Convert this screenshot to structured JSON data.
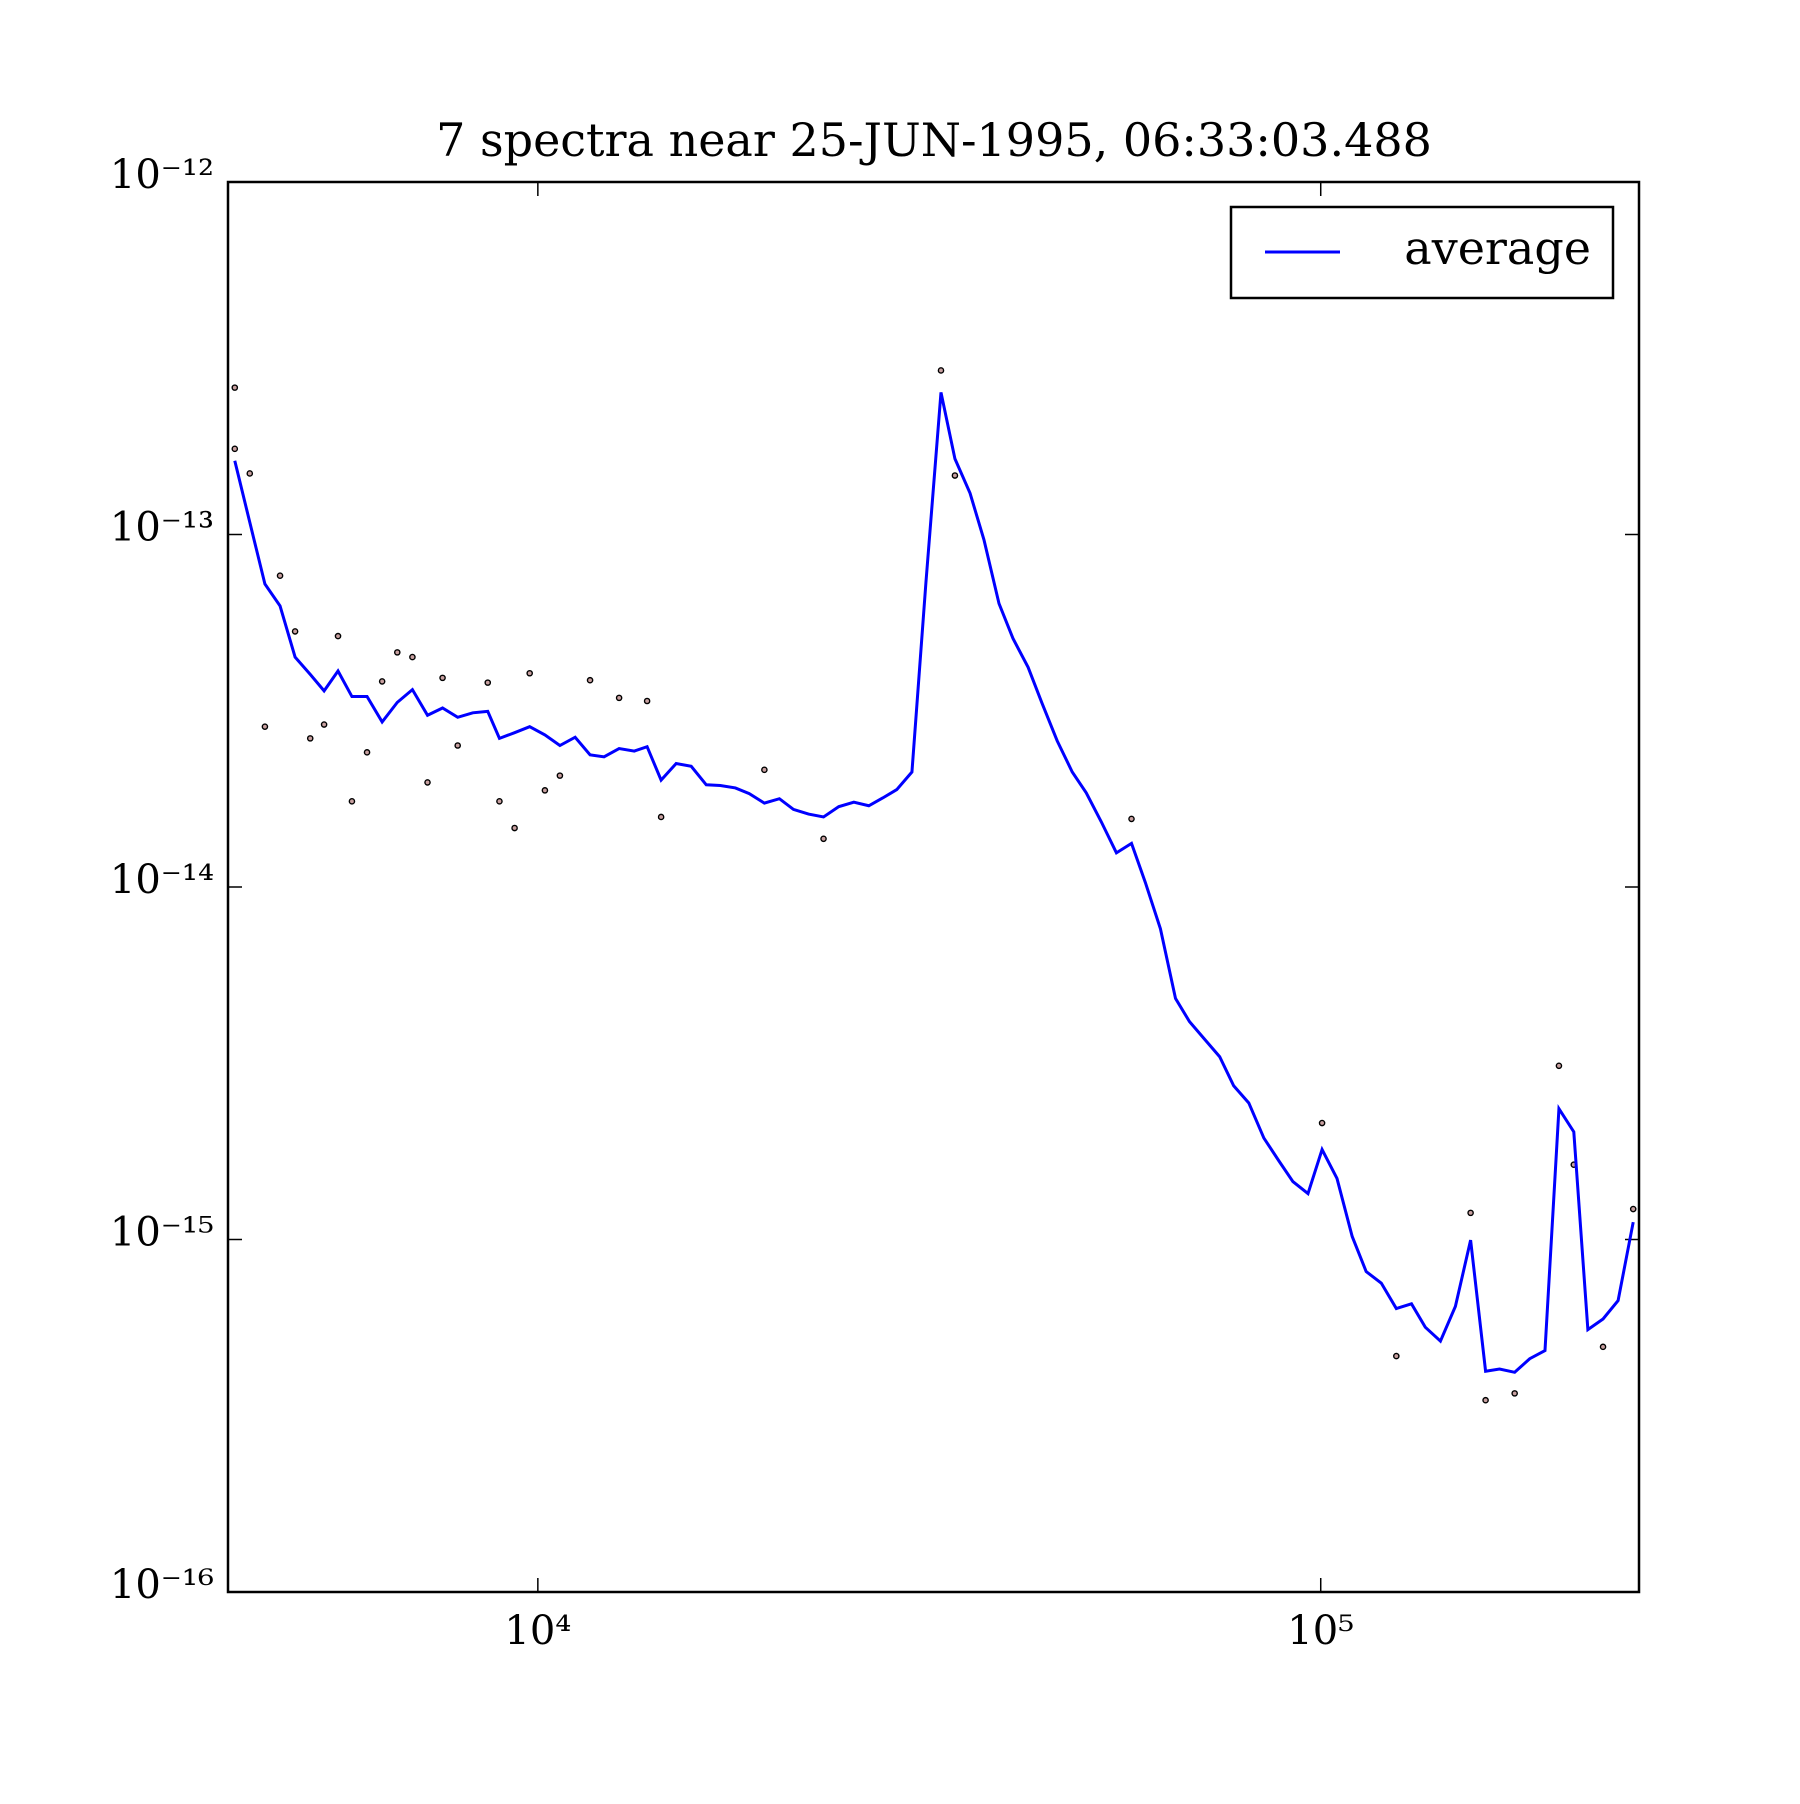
{
  "chart_data": {
    "type": "line",
    "title": "7 spectra near 25-JUN-1995, 06:33:03.488",
    "xscale": "log",
    "yscale": "log",
    "xlim": [
      4020,
      255000
    ],
    "ylim": [
      1e-16,
      1e-12
    ],
    "xticks": [
      {
        "value": 10000,
        "label": "10⁴"
      },
      {
        "value": 100000,
        "label": "10⁵"
      }
    ],
    "yticks": [
      {
        "value": 1e-16,
        "label": "10⁻¹⁶"
      },
      {
        "value": 1e-15,
        "label": "10⁻¹⁵"
      },
      {
        "value": 1e-14,
        "label": "10⁻¹⁴"
      },
      {
        "value": 1e-13,
        "label": "10⁻¹³"
      },
      {
        "value": 1e-12,
        "label": "10⁻¹²"
      }
    ],
    "legend": "upper right",
    "series": [
      {
        "name": "average",
        "type": "line",
        "color": "#0000ff",
        "x": [
          4101,
          4286,
          4481,
          4685,
          4897,
          5120,
          5333,
          5556,
          5788,
          6051,
          6326,
          6614,
          6915,
          7229,
          7556,
          7900,
          8259,
          8630,
          8932,
          9339,
          9763,
          10210,
          10670,
          11160,
          11660,
          12150,
          12700,
          13280,
          13790,
          14370,
          15020,
          15700,
          16410,
          17100,
          17880,
          18620,
          19470,
          20350,
          21210,
          22170,
          23170,
          24230,
          25330,
          26470,
          27590,
          28740,
          30050,
          31310,
          32730,
          34100,
          35650,
          37140,
          38820,
          40450,
          42290,
          44060,
          46060,
          48150,
          50170,
          52450,
          54830,
          57320,
          59700,
          62410,
          65240,
          67980,
          71070,
          74290,
          77410,
          80930,
          84600,
          88440,
          92140,
          96320,
          100400,
          104900,
          109700,
          114300,
          119500,
          124900,
          130600,
          136000,
          142200,
          148600,
          155400,
          162400,
          169200,
          176900,
          184900,
          193400,
          201500,
          210500,
          219400,
          229400,
          239800,
          250700
        ],
        "values": [
          1.619e-13,
          1.083e-13,
          7.24e-14,
          6.27e-14,
          4.49e-14,
          4.01e-14,
          3.6e-14,
          4.1e-14,
          3.47e-14,
          3.47e-14,
          2.94e-14,
          3.34e-14,
          3.63e-14,
          3.07e-14,
          3.22e-14,
          3.03e-14,
          3.12e-14,
          3.15e-14,
          2.64e-14,
          2.74e-14,
          2.85e-14,
          2.7e-14,
          2.52e-14,
          2.66e-14,
          2.37e-14,
          2.34e-14,
          2.47e-14,
          2.43e-14,
          2.5e-14,
          2.01e-14,
          2.24e-14,
          2.2e-14,
          1.95e-14,
          1.94e-14,
          1.91e-14,
          1.84e-14,
          1.73e-14,
          1.78e-14,
          1.66e-14,
          1.61e-14,
          1.58e-14,
          1.69e-14,
          1.74e-14,
          1.7e-14,
          1.79e-14,
          1.89e-14,
          2.12e-14,
          7.3e-14,
          2.53e-13,
          1.64e-13,
          1.31e-13,
          9.66e-14,
          6.37e-14,
          5.07e-14,
          4.2e-14,
          3.32e-14,
          2.6e-14,
          2.12e-14,
          1.85e-14,
          1.53e-14,
          1.25e-14,
          1.33e-14,
          1.03e-14,
          7.61e-15,
          4.83e-15,
          4.15e-15,
          3.7e-15,
          3.3e-15,
          2.73e-15,
          2.44e-15,
          1.94e-15,
          1.67e-15,
          1.46e-15,
          1.35e-15,
          1.8e-15,
          1.49e-15,
          1.02e-15,
          8.11e-16,
          7.52e-16,
          6.37e-16,
          6.57e-16,
          5.64e-16,
          5.15e-16,
          6.46e-16,
          9.96e-16,
          4.23e-16,
          4.29e-16,
          4.2e-16,
          4.59e-16,
          4.84e-16,
          2.35e-15,
          2.02e-15,
          5.55e-16,
          5.95e-16,
          6.71e-16,
          1.12e-15
        ]
      },
      {
        "type": "scatter",
        "color": "#000000",
        "x": [
          4101,
          4101,
          4286,
          4481,
          4685,
          4897,
          5120,
          5333,
          5556,
          5788,
          6051,
          6326,
          6614,
          6915,
          7229,
          7556,
          7900,
          8630,
          8932,
          9339,
          9763,
          10210,
          10670,
          11660,
          12700,
          13790,
          14370,
          19470,
          23170,
          32730,
          34100,
          57320,
          100400,
          124900,
          155400,
          162400,
          176900,
          201500,
          210500,
          229400,
          250700
        ],
        "values": [
          2.61e-13,
          1.75e-13,
          1.49e-13,
          2.85e-14,
          7.64e-14,
          5.31e-14,
          2.64e-14,
          2.89e-14,
          5.15e-14,
          1.75e-14,
          2.41e-14,
          3.83e-14,
          4.63e-14,
          4.49e-14,
          1.98e-14,
          3.92e-14,
          2.52e-14,
          3.8e-14,
          1.75e-14,
          1.47e-14,
          4.04e-14,
          1.88e-14,
          2.07e-14,
          3.86e-14,
          3.44e-14,
          3.37e-14,
          1.58e-14,
          2.15e-14,
          1.37e-14,
          2.92e-13,
          1.47e-13,
          1.56e-14,
          2.14e-15,
          4.67e-16,
          1.19e-15,
          3.5e-16,
          3.66e-16,
          3.11e-15,
          1.63e-15,
          4.96e-16,
          1.22e-15
        ]
      }
    ]
  }
}
